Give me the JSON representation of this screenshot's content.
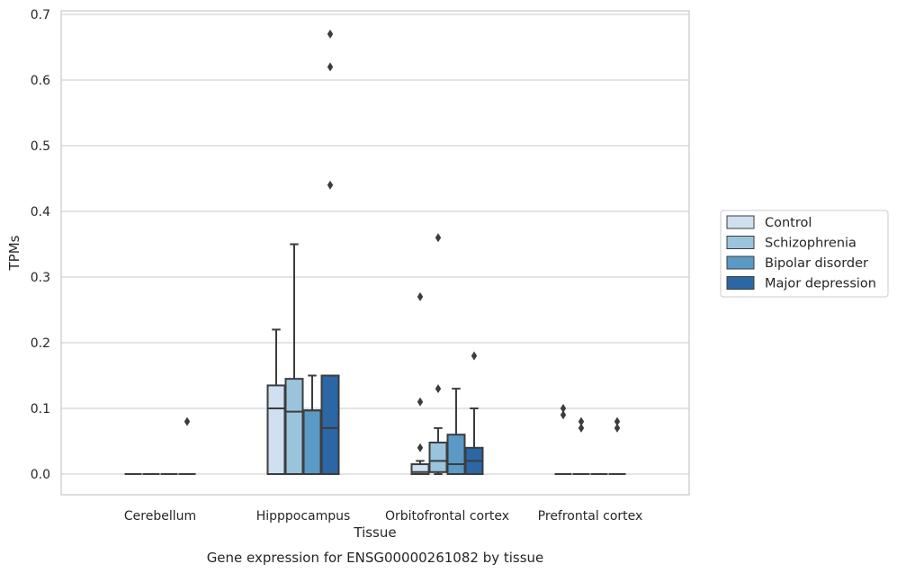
{
  "caption": "Gene expression for ENSG00000261082 by tissue",
  "chart_data": {
    "type": "box",
    "xlabel": "Tissue",
    "ylabel": "TPMs",
    "ylim": [
      -0.03,
      0.705
    ],
    "yticks": [
      0.0,
      0.1,
      0.2,
      0.3,
      0.4,
      0.5,
      0.6,
      0.7
    ],
    "ytick_labels": [
      "0.0",
      "0.1",
      "0.2",
      "0.3",
      "0.4",
      "0.5",
      "0.6",
      "0.7"
    ],
    "grid": "horizontal",
    "legend_position": "right",
    "categories": [
      "Cerebellum",
      "Hipppocampus",
      "Orbitofrontal cortex",
      "Prefrontal cortex"
    ],
    "series": [
      {
        "name": "Control",
        "color": "#cfe0f0",
        "boxes": [
          {
            "q1": 0,
            "median": 0,
            "q3": 0,
            "whisker_low": 0,
            "whisker_high": 0,
            "outliers": []
          },
          {
            "q1": 0,
            "median": 0.1,
            "q3": 0.135,
            "whisker_low": 0,
            "whisker_high": 0.22,
            "outliers": []
          },
          {
            "q1": 0,
            "median": 0.003,
            "q3": 0.015,
            "whisker_low": 0,
            "whisker_high": 0.02,
            "outliers": [
              0.04,
              0.11,
              0.27
            ]
          },
          {
            "q1": 0,
            "median": 0,
            "q3": 0,
            "whisker_low": 0,
            "whisker_high": 0,
            "outliers": [
              0.09,
              0.1
            ]
          }
        ]
      },
      {
        "name": "Schizophrenia",
        "color": "#9ac4dc",
        "boxes": [
          {
            "q1": 0,
            "median": 0,
            "q3": 0,
            "whisker_low": 0,
            "whisker_high": 0,
            "outliers": []
          },
          {
            "q1": 0,
            "median": 0.095,
            "q3": 0.145,
            "whisker_low": 0,
            "whisker_high": 0.35,
            "outliers": []
          },
          {
            "q1": 0.003,
            "median": 0.02,
            "q3": 0.048,
            "whisker_low": 0,
            "whisker_high": 0.07,
            "outliers": [
              0.13,
              0.36
            ]
          },
          {
            "q1": 0,
            "median": 0,
            "q3": 0,
            "whisker_low": 0,
            "whisker_high": 0,
            "outliers": [
              0.07,
              0.08
            ]
          }
        ]
      },
      {
        "name": "Bipolar disorder",
        "color": "#5b9ac6",
        "boxes": [
          {
            "q1": 0,
            "median": 0,
            "q3": 0,
            "whisker_low": 0,
            "whisker_high": 0,
            "outliers": []
          },
          {
            "q1": 0,
            "median": 0.097,
            "q3": 0.097,
            "whisker_low": 0,
            "whisker_high": 0.15,
            "outliers": []
          },
          {
            "q1": 0,
            "median": 0.015,
            "q3": 0.06,
            "whisker_low": 0,
            "whisker_high": 0.13,
            "outliers": []
          },
          {
            "q1": 0,
            "median": 0,
            "q3": 0,
            "whisker_low": 0,
            "whisker_high": 0,
            "outliers": []
          }
        ]
      },
      {
        "name": "Major depression",
        "color": "#2a67a4",
        "boxes": [
          {
            "q1": 0,
            "median": 0,
            "q3": 0,
            "whisker_low": 0,
            "whisker_high": 0,
            "outliers": [
              0.08
            ]
          },
          {
            "q1": 0,
            "median": 0.07,
            "q3": 0.15,
            "whisker_low": 0,
            "whisker_high": 0.15,
            "outliers": [
              0.44,
              0.62,
              0.67
            ]
          },
          {
            "q1": 0,
            "median": 0.02,
            "q3": 0.04,
            "whisker_low": 0,
            "whisker_high": 0.1,
            "outliers": [
              0.18
            ]
          },
          {
            "q1": 0,
            "median": 0,
            "q3": 0,
            "whisker_low": 0,
            "whisker_high": 0,
            "outliers": [
              0.07,
              0.08
            ]
          }
        ]
      }
    ]
  }
}
